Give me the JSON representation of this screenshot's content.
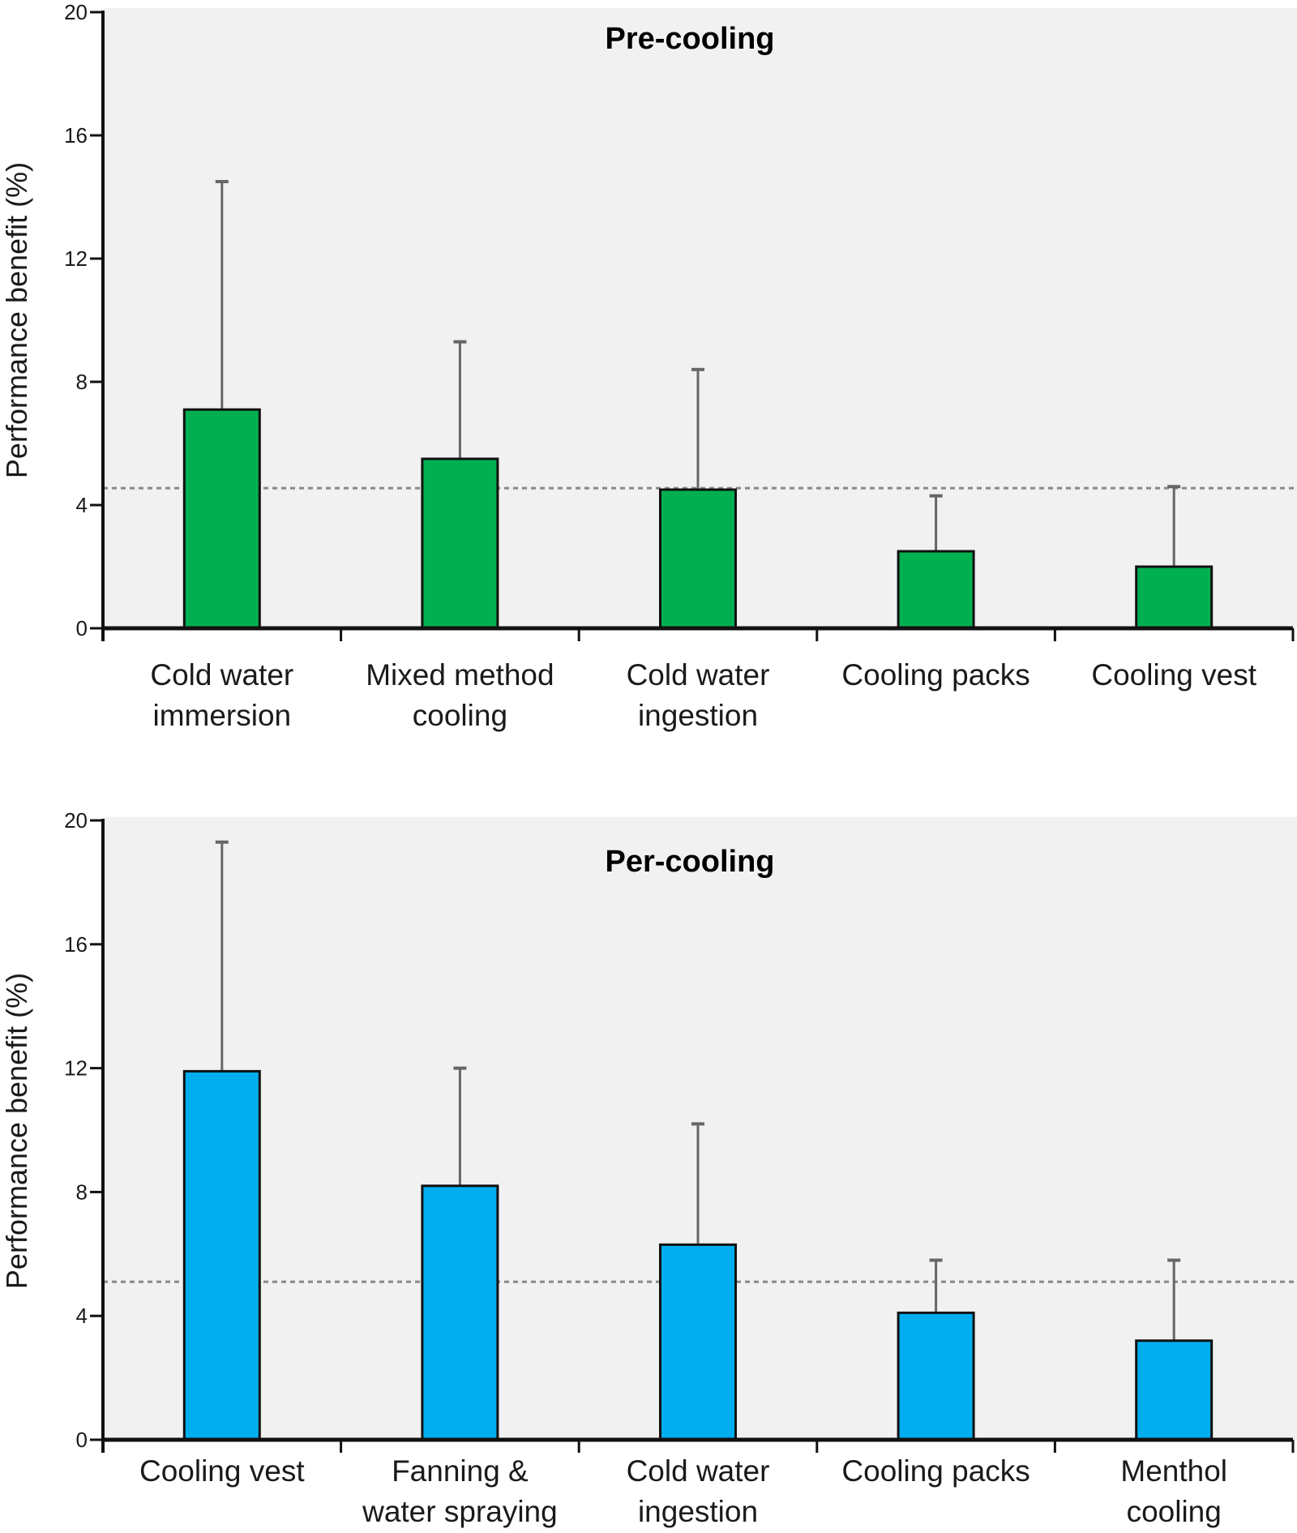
{
  "chart_data": [
    {
      "type": "bar",
      "title": "Pre-cooling",
      "xlabel": "",
      "ylabel": "Performance benefit (%)",
      "ylim": [
        0,
        20
      ],
      "yticks": [
        0,
        4,
        8,
        12,
        16,
        20
      ],
      "grid": false,
      "categories": [
        "Cold water immersion",
        "Mixed method cooling",
        "Cold water ingestion",
        "Cooling packs",
        "Cooling vest"
      ],
      "category_lines": [
        [
          "Cold water",
          "immersion"
        ],
        [
          "Mixed method",
          "cooling"
        ],
        [
          "Cold water",
          "ingestion"
        ],
        [
          "Cooling packs"
        ],
        [
          "Cooling vest"
        ]
      ],
      "values": [
        7.1,
        5.5,
        4.5,
        2.5,
        2.0
      ],
      "error_upper": [
        14.5,
        9.3,
        8.4,
        4.3,
        4.6
      ],
      "reference_line": 4.55,
      "bar_color": "#00B050",
      "background_color": "#F1F1F1"
    },
    {
      "type": "bar",
      "title": "Per-cooling",
      "xlabel": "",
      "ylabel": "Performance benefit (%)",
      "ylim": [
        0,
        20
      ],
      "yticks": [
        0,
        4,
        8,
        12,
        16,
        20
      ],
      "grid": false,
      "categories": [
        "Cooling vest",
        "Fanning & water spraying",
        "Cold water ingestion",
        "Cooling packs",
        "Menthol cooling"
      ],
      "category_lines": [
        [
          "Cooling vest"
        ],
        [
          "Fanning &",
          "water spraying"
        ],
        [
          "Cold water",
          "ingestion"
        ],
        [
          "Cooling packs"
        ],
        [
          "Menthol",
          "cooling"
        ]
      ],
      "values": [
        11.9,
        8.2,
        6.3,
        4.1,
        3.2
      ],
      "error_upper": [
        19.3,
        12.0,
        10.2,
        5.8,
        5.8
      ],
      "reference_line": 5.1,
      "bar_color": "#00AEEF",
      "background_color": "#F1F1F1"
    }
  ]
}
